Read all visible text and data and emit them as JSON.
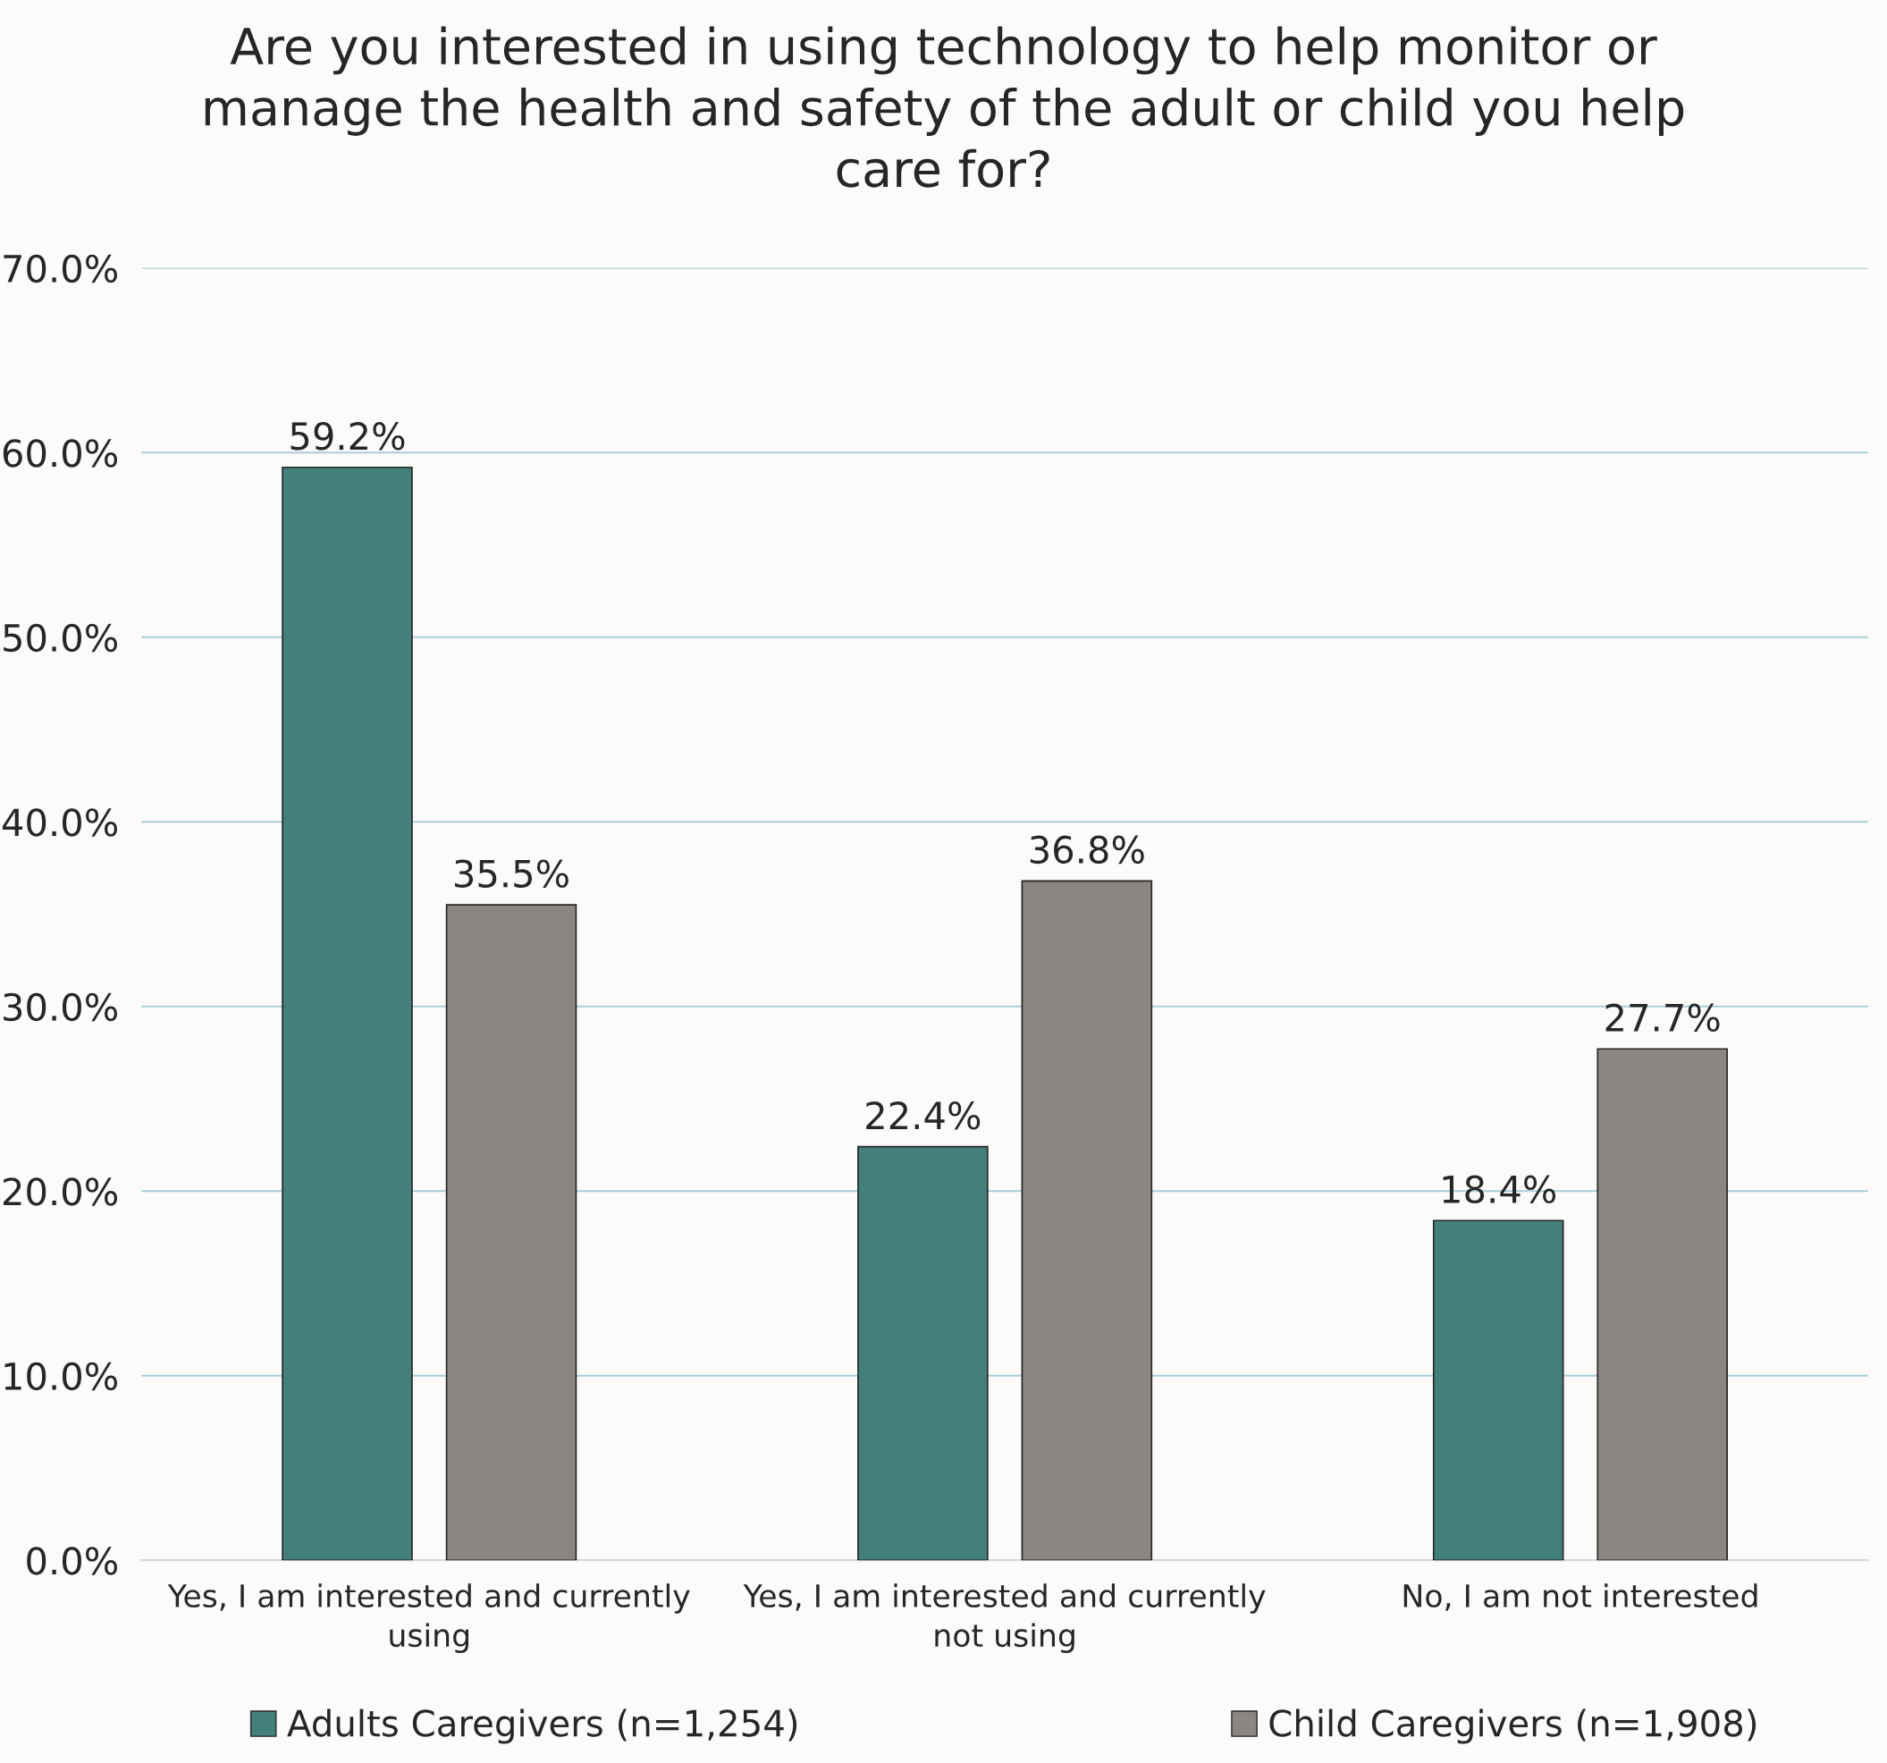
{
  "chart_data": {
    "type": "bar",
    "title": "Are you interested in using technology to help monitor or manage the health and safety of the adult or child you help care for?",
    "categories": [
      "Yes, I am interested and currently using",
      "Yes, I am interested and currently not using",
      "No, I am not interested"
    ],
    "series": [
      {
        "name": "Adults Caregivers (n=1,254)",
        "color": "#43807b",
        "values": [
          59.2,
          22.4,
          18.4
        ],
        "value_labels": [
          "59.2%",
          "22.4%",
          "18.4%"
        ]
      },
      {
        "name": "Child Caregivers (n=1,908)",
        "color": "#8a8681",
        "values": [
          35.5,
          36.8,
          27.7
        ],
        "value_labels": [
          "35.5%",
          "36.8%",
          "27.7%"
        ]
      }
    ],
    "ylim": [
      0,
      70
    ],
    "yticks": [
      {
        "value": 0,
        "label": "0.0%"
      },
      {
        "value": 10,
        "label": "10.0%"
      },
      {
        "value": 20,
        "label": "20.0%"
      },
      {
        "value": 30,
        "label": "30.0%"
      },
      {
        "value": 40,
        "label": "40.0%"
      },
      {
        "value": 50,
        "label": "50.0%"
      },
      {
        "value": 60,
        "label": "60.0%"
      },
      {
        "value": 70,
        "label": "70.0%"
      }
    ],
    "grid": "y",
    "legend": "bottom"
  }
}
